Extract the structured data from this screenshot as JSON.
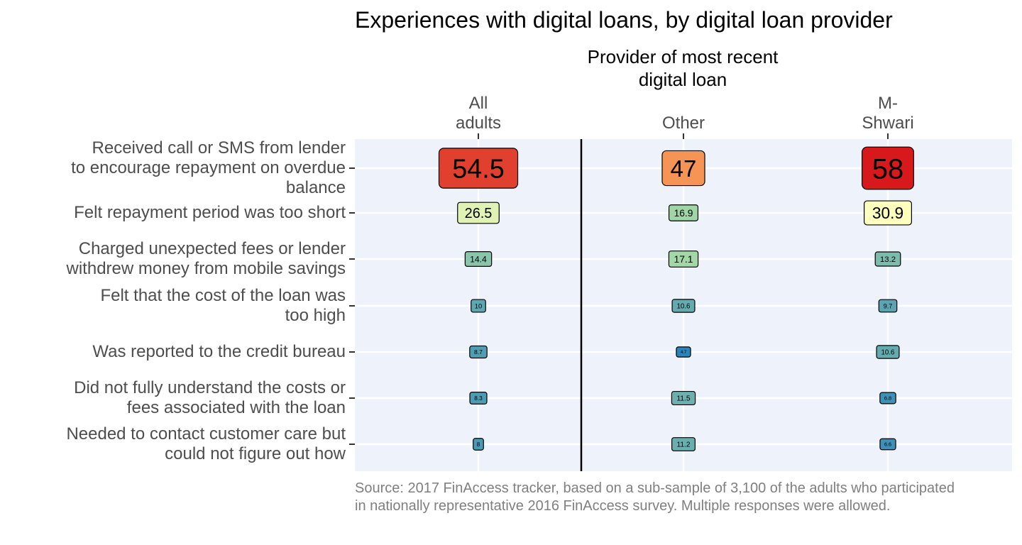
{
  "chart_data": {
    "type": "heatmap",
    "title": "Experiences with digital loans, by digital loan provider",
    "column_header": [
      "Provider of most recent",
      "digital loan"
    ],
    "columns": [
      {
        "label_lines": [
          "All",
          "adults"
        ]
      },
      {
        "label_lines": [
          "Other"
        ]
      },
      {
        "label_lines": [
          "M-",
          "Shwari"
        ]
      }
    ],
    "rows": [
      {
        "label_lines": [
          "Received call or SMS from lender",
          "to encourage repayment on overdue",
          "balance"
        ],
        "values": [
          54.5,
          47,
          58
        ]
      },
      {
        "label_lines": [
          "Felt repayment period was too short"
        ],
        "values": [
          26.5,
          16.9,
          30.9
        ]
      },
      {
        "label_lines": [
          "Charged unexpected fees or lender",
          "withdrew money from mobile savings"
        ],
        "values": [
          14.4,
          17.1,
          13.2
        ]
      },
      {
        "label_lines": [
          "Felt that the cost of the loan was",
          "too high"
        ],
        "values": [
          10,
          10.6,
          9.7
        ]
      },
      {
        "label_lines": [
          "Was reported to the credit bureau"
        ],
        "values": [
          8.7,
          4.7,
          10.6
        ]
      },
      {
        "label_lines": [
          "Did not fully understand the costs or",
          "fees associated with the loan"
        ],
        "values": [
          8.3,
          11.5,
          6.8
        ]
      },
      {
        "label_lines": [
          "Needed to contact customer care but",
          "could not figure out how"
        ],
        "values": [
          8,
          11.2,
          6.6
        ]
      }
    ],
    "value_range": [
      4.7,
      58
    ],
    "color_scale": [
      "#2b83ba",
      "#abdda4",
      "#ffffbf",
      "#fdae61",
      "#d7191c"
    ],
    "panel_background": "#eef3fb",
    "grid": true,
    "source": "Source: 2017 FinAccess tracker, based on a sub-sample of 3,100 of the adults who participated in nationally representative 2016 FinAccess survey. Multiple responses were allowed."
  }
}
